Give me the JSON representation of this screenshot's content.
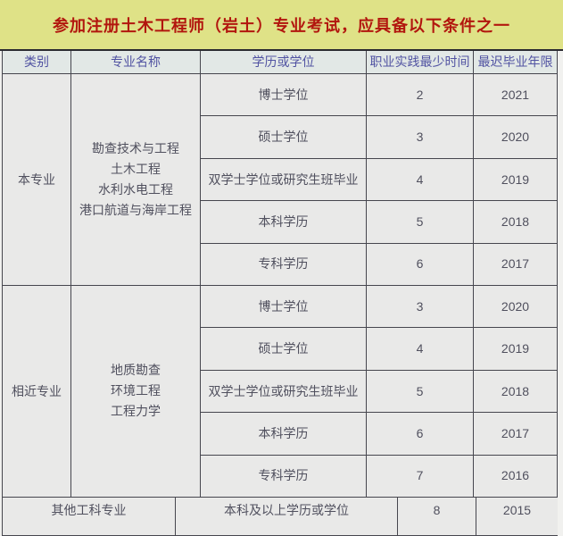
{
  "title": "参加注册土木工程师（岩土）专业考试，应具备以下条件之一",
  "colors": {
    "title_bg": "#dfe287",
    "title_text": "#b2160e",
    "header_bg": "#e2e8e6",
    "header_text": "#5153a2",
    "cell_bg": "#e9e9e8",
    "cell_text": "#50505e",
    "border": "#46464e"
  },
  "table": {
    "headers": [
      "类别",
      "专业名称",
      "学历或学位",
      "职业实践最少时间",
      "最迟毕业年限"
    ],
    "sections": [
      {
        "category": "本专业",
        "majors": [
          "勘查技术与工程",
          "土木工程",
          "水利水电工程",
          "港口航道与海岸工程"
        ],
        "rows": [
          {
            "degree": "博士学位",
            "practice_years": "2",
            "latest_grad_year": "2021"
          },
          {
            "degree": "硕士学位",
            "practice_years": "3",
            "latest_grad_year": "2020"
          },
          {
            "degree": "双学士学位或研究生班毕业",
            "practice_years": "4",
            "latest_grad_year": "2019"
          },
          {
            "degree": "本科学历",
            "practice_years": "5",
            "latest_grad_year": "2018"
          },
          {
            "degree": "专科学历",
            "practice_years": "6",
            "latest_grad_year": "2017"
          }
        ]
      },
      {
        "category": "相近专业",
        "majors": [
          "地质勘查",
          "环境工程",
          "工程力学"
        ],
        "rows": [
          {
            "degree": "博士学位",
            "practice_years": "3",
            "latest_grad_year": "2020"
          },
          {
            "degree": "硕士学位",
            "practice_years": "4",
            "latest_grad_year": "2019"
          },
          {
            "degree": "双学士学位或研究生班毕业",
            "practice_years": "5",
            "latest_grad_year": "2018"
          },
          {
            "degree": "本科学历",
            "practice_years": "6",
            "latest_grad_year": "2017"
          },
          {
            "degree": "专科学历",
            "practice_years": "7",
            "latest_grad_year": "2016"
          }
        ]
      }
    ],
    "other_row": {
      "category": "其他工科专业",
      "degree": "本科及以上学历或学位",
      "practice_years": "8",
      "latest_grad_year": "2015"
    }
  },
  "chart_data": {
    "type": "table",
    "title": "参加注册土木工程师（岩土）专业考试，应具备以下条件之一",
    "columns": [
      "类别",
      "专业名称",
      "学历或学位",
      "职业实践最少时间",
      "最迟毕业年限"
    ],
    "rows": [
      [
        "本专业",
        "勘查技术与工程 土木工程 水利水电工程 港口航道与海岸工程",
        "博士学位",
        2,
        2021
      ],
      [
        "本专业",
        "勘查技术与工程 土木工程 水利水电工程 港口航道与海岸工程",
        "硕士学位",
        3,
        2020
      ],
      [
        "本专业",
        "勘查技术与工程 土木工程 水利水电工程 港口航道与海岸工程",
        "双学士学位或研究生班毕业",
        4,
        2019
      ],
      [
        "本专业",
        "勘查技术与工程 土木工程 水利水电工程 港口航道与海岸工程",
        "本科学历",
        5,
        2018
      ],
      [
        "本专业",
        "勘查技术与工程 土木工程 水利水电工程 港口航道与海岸工程",
        "专科学历",
        6,
        2017
      ],
      [
        "相近专业",
        "地质勘查 环境工程 工程力学",
        "博士学位",
        3,
        2020
      ],
      [
        "相近专业",
        "地质勘查 环境工程 工程力学",
        "硕士学位",
        4,
        2019
      ],
      [
        "相近专业",
        "地质勘查 环境工程 工程力学",
        "双学士学位或研究生班毕业",
        5,
        2018
      ],
      [
        "相近专业",
        "地质勘查 环境工程 工程力学",
        "本科学历",
        6,
        2017
      ],
      [
        "相近专业",
        "地质勘查 环境工程 工程力学",
        "专科学历",
        7,
        2016
      ],
      [
        "其他工科专业",
        "其他工科专业",
        "本科及以上学历或学位",
        8,
        2015
      ]
    ]
  }
}
